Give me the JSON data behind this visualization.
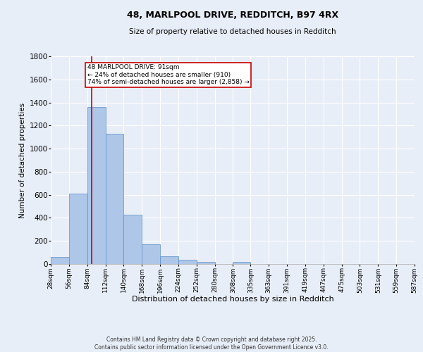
{
  "title_line1": "48, MARLPOOL DRIVE, REDDITCH, B97 4RX",
  "title_line2": "Size of property relative to detached houses in Redditch",
  "xlabel": "Distribution of detached houses by size in Redditch",
  "ylabel": "Number of detached properties",
  "bin_edges": [
    28,
    56,
    84,
    112,
    140,
    168,
    196,
    224,
    252,
    280,
    308,
    335,
    363,
    391,
    419,
    447,
    475,
    503,
    531,
    559,
    587
  ],
  "bin_counts": [
    60,
    610,
    1360,
    1130,
    430,
    170,
    70,
    35,
    20,
    0,
    20,
    0,
    0,
    0,
    0,
    0,
    0,
    0,
    0,
    0
  ],
  "bar_color": "#aec6e8",
  "bar_edge_color": "#5a8fc4",
  "background_color": "#e8eef8",
  "grid_color": "#ffffff",
  "vline_x": 91,
  "vline_color": "#cc0000",
  "annotation_text": "48 MARLPOOL DRIVE: 91sqm\n← 24% of detached houses are smaller (910)\n74% of semi-detached houses are larger (2,858) →",
  "annotation_box_color": "#ffffff",
  "annotation_box_edge": "#cc0000",
  "ylim": [
    0,
    1800
  ],
  "yticks": [
    0,
    200,
    400,
    600,
    800,
    1000,
    1200,
    1400,
    1600,
    1800
  ],
  "xtick_labels": [
    "28sqm",
    "56sqm",
    "84sqm",
    "112sqm",
    "140sqm",
    "168sqm",
    "196sqm",
    "224sqm",
    "252sqm",
    "280sqm",
    "308sqm",
    "335sqm",
    "363sqm",
    "391sqm",
    "419sqm",
    "447sqm",
    "475sqm",
    "503sqm",
    "531sqm",
    "559sqm",
    "587sqm"
  ],
  "footer_line1": "Contains HM Land Registry data © Crown copyright and database right 2025.",
  "footer_line2": "Contains public sector information licensed under the Open Government Licence v3.0.",
  "figsize": [
    6.0,
    5.0
  ],
  "dpi": 100
}
